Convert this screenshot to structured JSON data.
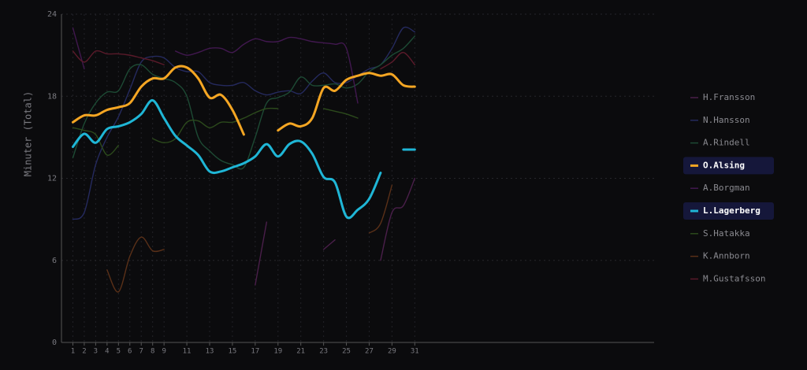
{
  "chart_data": {
    "type": "line",
    "y_label": "Minuter (Total)",
    "xlim": [
      0,
      52
    ],
    "xticks": [
      1,
      2,
      3,
      4,
      5,
      6,
      7,
      8,
      9,
      11,
      13,
      15,
      17,
      19,
      21,
      23,
      25,
      27,
      29,
      31
    ],
    "ylim": [
      0,
      24
    ],
    "yticks": [
      0,
      6,
      12,
      18,
      24
    ],
    "grid": true,
    "x": [
      1,
      2,
      3,
      4,
      5,
      6,
      7,
      8,
      9,
      10,
      11,
      12,
      13,
      14,
      15,
      16,
      17,
      18,
      19,
      20,
      21,
      22,
      23,
      24,
      25,
      26,
      27,
      28,
      29,
      30,
      31
    ],
    "series": [
      {
        "name": "H.Fransson",
        "color": "#4a1f4a",
        "highlighted": false,
        "values": [
          null,
          null,
          null,
          null,
          null,
          null,
          null,
          null,
          null,
          null,
          null,
          null,
          null,
          null,
          null,
          null,
          4.2,
          8.8,
          null,
          null,
          null,
          null,
          6.8,
          7.5,
          null,
          null,
          null,
          6.0,
          9.5,
          10.0,
          12.0
        ]
      },
      {
        "name": "N.Hansson",
        "color": "#252a5e",
        "highlighted": false,
        "values": [
          9.0,
          9.5,
          13.0,
          15.0,
          16.5,
          18.5,
          20.5,
          20.9,
          20.8,
          20.1,
          19.8,
          19.8,
          19.0,
          18.8,
          18.8,
          19.0,
          18.4,
          18.1,
          18.3,
          18.4,
          18.2,
          19.1,
          19.7,
          19.0,
          19.0,
          19.5,
          20.0,
          20.3,
          21.5,
          23.0,
          22.7
        ]
      },
      {
        "name": "A.Rindell",
        "color": "#1d4a34",
        "highlighted": false,
        "values": [
          13.5,
          16.0,
          17.5,
          18.3,
          18.4,
          20.0,
          20.3,
          19.6,
          19.3,
          19.0,
          18.0,
          15.0,
          14.0,
          13.3,
          13.0,
          12.8,
          15.0,
          17.5,
          17.9,
          18.3,
          19.4,
          18.8,
          18.8,
          18.9,
          18.6,
          18.9,
          19.8,
          20.3,
          21.0,
          21.5,
          22.4
        ]
      },
      {
        "name": "O.Alsing",
        "color": "#f5a623",
        "highlighted": true,
        "values": [
          16.1,
          16.6,
          16.6,
          17.0,
          17.2,
          17.5,
          18.7,
          19.3,
          19.3,
          20.1,
          20.1,
          19.3,
          17.9,
          18.1,
          17.0,
          15.2,
          null,
          null,
          15.5,
          16.0,
          15.8,
          16.4,
          18.6,
          18.4,
          19.2,
          19.5,
          19.7,
          19.5,
          19.6,
          18.8,
          18.7
        ]
      },
      {
        "name": "A.Borgman",
        "color": "#41184f",
        "highlighted": false,
        "values": [
          23.0,
          20.0,
          null,
          null,
          null,
          null,
          null,
          null,
          null,
          21.3,
          21.0,
          21.2,
          21.5,
          21.5,
          21.2,
          21.8,
          22.2,
          22.0,
          22.0,
          22.3,
          22.2,
          22.0,
          21.9,
          21.8,
          21.5,
          17.5,
          null,
          null,
          null,
          null,
          22.5
        ]
      },
      {
        "name": "L.Lagerberg",
        "color": "#1fb6d6",
        "highlighted": true,
        "values": [
          14.3,
          15.25,
          14.6,
          15.6,
          15.8,
          16.1,
          16.7,
          17.7,
          16.4,
          15.1,
          14.4,
          13.7,
          12.5,
          12.5,
          12.8,
          13.1,
          13.6,
          14.5,
          13.6,
          14.5,
          14.7,
          13.8,
          12.1,
          11.7,
          9.2,
          9.7,
          10.5,
          12.4,
          null,
          14.1,
          14.1
        ]
      },
      {
        "name": "S.Hatakka",
        "color": "#2c4a1c",
        "highlighted": false,
        "values": [
          15.7,
          15.5,
          15.2,
          13.7,
          14.4,
          null,
          null,
          14.9,
          14.6,
          14.9,
          16.1,
          16.2,
          15.7,
          16.1,
          16.1,
          16.4,
          16.8,
          17.1,
          17.1,
          null,
          null,
          null,
          17.1,
          16.9,
          16.7,
          16.4,
          null,
          null,
          null,
          null,
          null
        ]
      },
      {
        "name": "K.Annborn",
        "color": "#5a3018",
        "highlighted": false,
        "values": [
          null,
          null,
          null,
          5.3,
          3.7,
          6.3,
          7.7,
          6.7,
          6.8,
          null,
          null,
          null,
          null,
          null,
          null,
          null,
          null,
          null,
          null,
          null,
          null,
          null,
          null,
          null,
          null,
          null,
          8.0,
          8.7,
          11.5,
          null,
          null
        ]
      },
      {
        "name": "M.Gustafsson",
        "color": "#5a1a2a",
        "highlighted": false,
        "values": [
          21.3,
          20.5,
          21.3,
          21.1,
          21.1,
          21.0,
          20.8,
          20.6,
          20.3,
          null,
          null,
          null,
          null,
          null,
          null,
          null,
          null,
          null,
          null,
          null,
          null,
          null,
          null,
          null,
          null,
          null,
          null,
          20.0,
          20.5,
          21.2,
          20.3
        ]
      }
    ]
  }
}
